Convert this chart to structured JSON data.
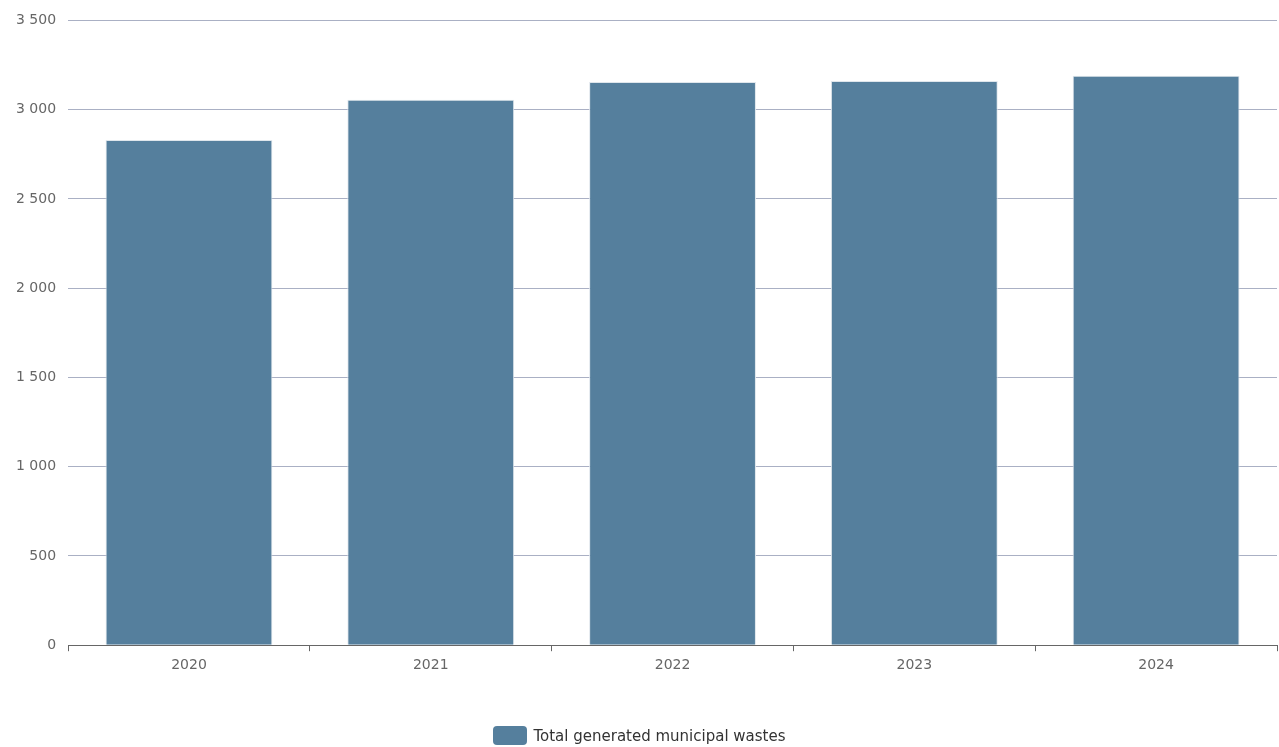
{
  "chart_data": {
    "type": "bar",
    "categories": [
      "2020",
      "2021",
      "2022",
      "2023",
      "2024"
    ],
    "series": [
      {
        "name": "Total generated municipal wastes",
        "color": "#557f9d",
        "values": [
          2830,
          3055,
          3155,
          3160,
          3190
        ]
      }
    ],
    "ylim": [
      0,
      3500
    ],
    "yticks": [
      0,
      500,
      {
        "value": 1000,
        "label": "1 000"
      },
      {
        "value": 1500,
        "label": "1 500"
      },
      {
        "value": 2000,
        "label": "2 000"
      },
      {
        "value": 2500,
        "label": "2 500"
      },
      {
        "value": 3000,
        "label": "3 000"
      },
      {
        "value": 3500,
        "label": "3 500"
      }
    ],
    "grid": "y",
    "legend": "bottom"
  }
}
